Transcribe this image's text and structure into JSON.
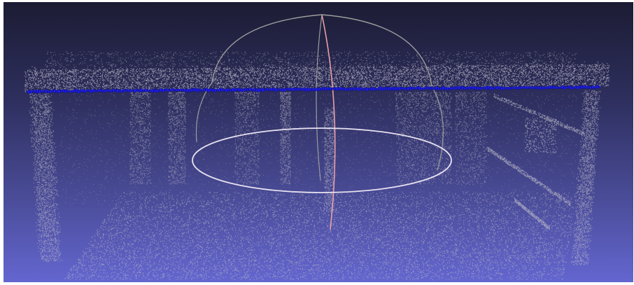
{
  "viewer": {
    "background_top": "#1c1c34",
    "background_bottom": "#6466d0",
    "point_color": "#b8b6c6",
    "selection_color": "#2020e8",
    "trackball_color": "#9c9c9c",
    "trackball_axis_color": "#e8a0a8",
    "trackball_equator_color": "#e8e2f0"
  },
  "icons": {
    "trackball": "trackball-gizmo-icon"
  }
}
